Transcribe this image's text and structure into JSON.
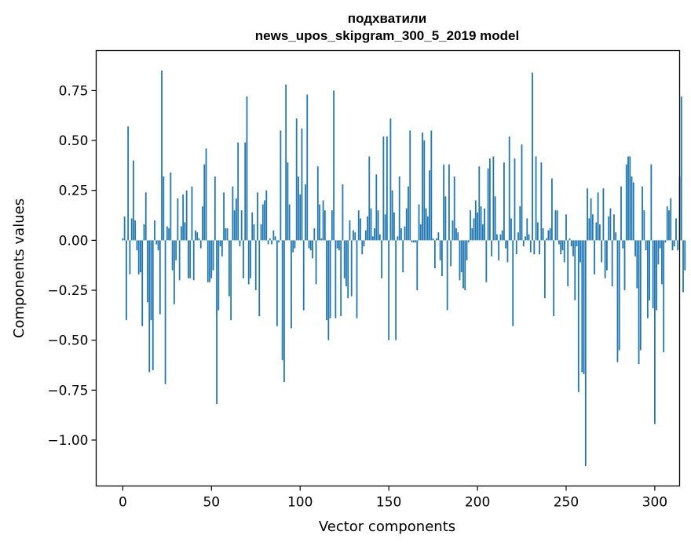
{
  "chart_data": {
    "type": "bar",
    "title_line1": "подхватили",
    "title_line2": "news_upos_skipgram_300_5_2019 model",
    "xlabel": "Vector components",
    "ylabel": "Components values",
    "xlim": [
      -15,
      314
    ],
    "ylim": [
      -1.23,
      0.95
    ],
    "x_ticks": [
      0,
      50,
      100,
      150,
      200,
      250,
      300
    ],
    "x_tick_labels": [
      "0",
      "50",
      "100",
      "150",
      "200",
      "250",
      "300"
    ],
    "y_ticks": [
      0.75,
      0.5,
      0.25,
      0.0,
      -0.25,
      -0.5,
      -0.75,
      -1.0
    ],
    "y_tick_labels": [
      "0.75",
      "0.50",
      "0.25",
      "0.00",
      "−0.25",
      "−0.50",
      "−0.75",
      "−1.00"
    ],
    "bar_color": "#1f77b4",
    "grid": false,
    "legend": "none",
    "values": [
      0.01,
      0.12,
      -0.4,
      0.57,
      -0.17,
      0.11,
      0.4,
      0.1,
      -0.05,
      -0.17,
      -0.16,
      -0.43,
      0.08,
      0.24,
      -0.31,
      -0.66,
      -0.4,
      -0.65,
      0.1,
      -0.02,
      -0.05,
      -0.37,
      0.85,
      0.32,
      -0.72,
      0.07,
      0.06,
      0.34,
      -0.15,
      -0.32,
      -0.1,
      0.21,
      -0.2,
      0.07,
      0.23,
      0.09,
      0.25,
      -0.19,
      -0.19,
      0.27,
      -0.2,
      0.05,
      0.04,
      0.01,
      -0.04,
      0.17,
      0.38,
      0.46,
      -0.21,
      -0.21,
      -0.19,
      -0.15,
      0.32,
      -0.82,
      -0.35,
      -0.03,
      -0.08,
      0.24,
      0.06,
      0.06,
      -0.28,
      -0.4,
      0.27,
      0.15,
      0.21,
      0.49,
      -0.03,
      0.15,
      -0.19,
      0.49,
      0.72,
      -0.22,
      -0.19,
      0.14,
      0.08,
      -0.25,
      0.24,
      -0.38,
      0.08,
      0.18,
      0.2,
      0.25,
      -0.02,
      0.01,
      -0.02,
      0.05,
      0.02,
      -0.43,
      -0.01,
      0.55,
      -0.6,
      -0.71,
      0.78,
      0.39,
      0.18,
      -0.44,
      -0.06,
      -0.04,
      0.61,
      0.32,
      0.23,
      0.56,
      -0.35,
      0.28,
      0.73,
      -0.04,
      -0.05,
      -0.09,
      0.06,
      -0.22,
      0.37,
      0.18,
      0.01,
      0.2,
      0.15,
      -0.4,
      -0.5,
      -0.39,
      0.15,
      0.75,
      -0.39,
      -0.04,
      -0.05,
      -0.38,
      0.28,
      -0.19,
      -0.23,
      -0.29,
      0.1,
      -0.28,
      0.05,
      0.04,
      -0.39,
      0.15,
      0.11,
      -0.07,
      -0.03,
      0.05,
      0.12,
      0.42,
      0.16,
      0.02,
      0.06,
      0.33,
      0.15,
      0.03,
      -0.19,
      0.52,
      0.13,
      0.52,
      -0.5,
      0.61,
      0.25,
      0.14,
      -0.5,
      0.02,
      0.32,
      0.06,
      -0.16,
      0.07,
      0.16,
      0.27,
      0.55,
      -0.01,
      -0.01,
      -0.01,
      -0.25,
      0.18,
      0.08,
      0.54,
      0.5,
      0.16,
      0.12,
      0.35,
      0.55,
      0.01,
      -0.14,
      0.01,
      0.04,
      -0.1,
      -0.18,
      0.38,
      0.22,
      -0.35,
      0.38,
      -0.13,
      0.1,
      0.32,
      0.06,
      0.04,
      -0.2,
      -0.16,
      -0.24,
      -0.25,
      -0.1,
      -0.01,
      0.15,
      0.06,
      0.11,
      0.2,
      0.14,
      0.37,
      0.17,
      0.08,
      0.16,
      -0.21,
      0.36,
      0.41,
      -0.08,
      0.42,
      0.22,
      0.03,
      -0.1,
      0.03,
      0.05,
      0.39,
      -0.04,
      -0.11,
      0.52,
      0.11,
      -0.43,
      0.41,
      -0.07,
      0.04,
      0.17,
      0.48,
      -0.03,
      0.02,
      0.11,
      0.03,
      -0.06,
      0.84,
      -0.07,
      0.42,
      0.09,
      -0.07,
      0.39,
      0.06,
      -0.29,
      0.01,
      0.05,
      0.06,
      0.31,
      -0.38,
      0.15,
      0.15,
      -0.02,
      -0.07,
      -0.05,
      -0.11,
      0.13,
      -0.23,
      0.01,
      -0.03,
      -0.08,
      -0.3,
      -0.03,
      -0.76,
      -0.11,
      -0.66,
      -0.67,
      -1.13,
      0.26,
      0.11,
      0.21,
      0.13,
      -0.17,
      0.09,
      0.24,
      0.08,
      -0.11,
      0.26,
      -0.19,
      -0.15,
      0.12,
      0.16,
      -0.23,
      0.13,
      0.04,
      -0.61,
      -0.55,
      0.27,
      -0.04,
      -0.25,
      0.38,
      0.42,
      0.42,
      0.32,
      0.29,
      -0.08,
      -0.24,
      -0.62,
      -0.55,
      0.27,
      0.15,
      -0.05,
      -0.39,
      -0.3,
      0.38,
      -0.34,
      -0.92,
      -0.35,
      -0.12,
      -0.04,
      -0.22,
      -0.56,
      -0.01,
      0.17,
      0.15,
      0.21,
      -0.05,
      -0.03,
      0.11,
      -0.05,
      0.32,
      0.72,
      -0.26,
      -0.15
    ]
  }
}
